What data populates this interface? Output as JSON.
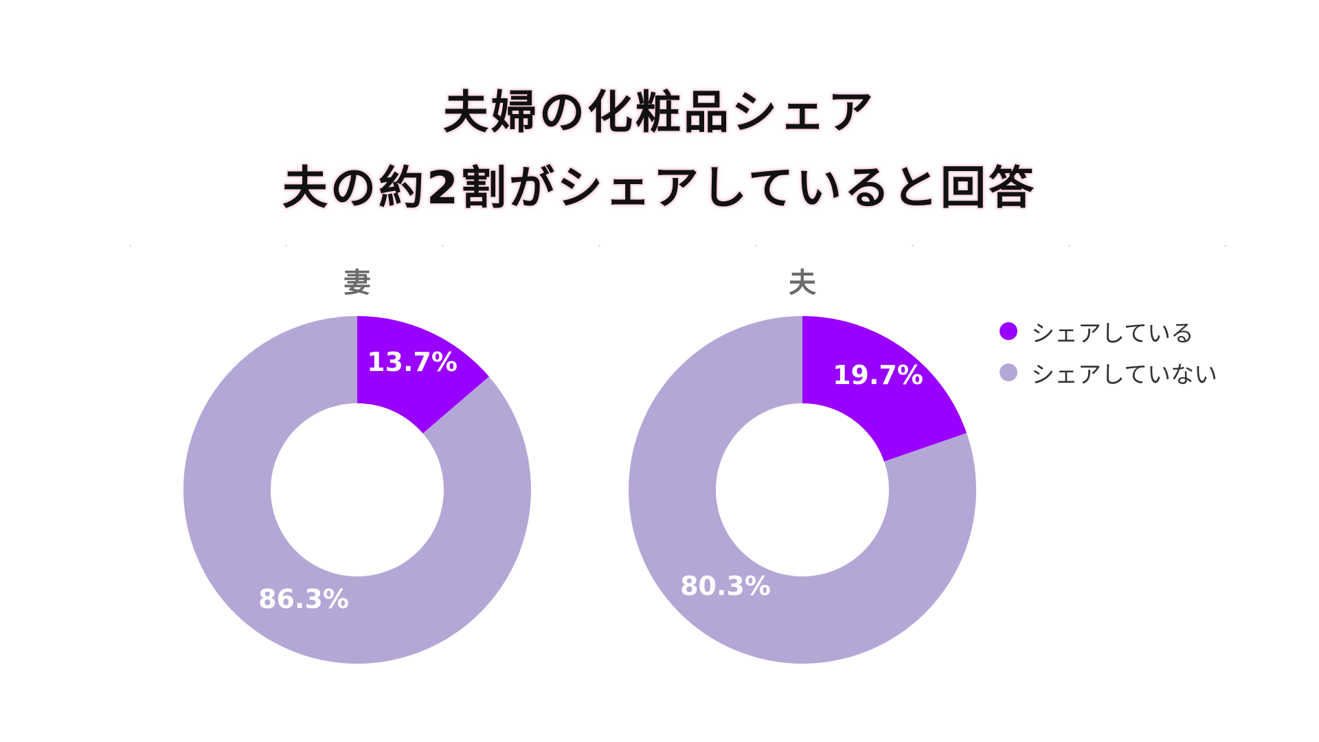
{
  "title": {
    "line1": "夫婦の化粧品シェア",
    "line2": "夫の約2割がシェアしていると回答"
  },
  "colors": {
    "share": "#9900ff",
    "no_share": "#b4a7d6",
    "title_text": "#111111",
    "chart_title": "#6b6b6b"
  },
  "legend": {
    "position": "right",
    "items": [
      {
        "label": "シェアしている",
        "color": "#9900ff"
      },
      {
        "label": "シェアしていない",
        "color": "#b4a7d6"
      }
    ]
  },
  "chart_data": [
    {
      "type": "pie",
      "donut": true,
      "title": "妻",
      "categories": [
        "シェアしている",
        "シェアしていない"
      ],
      "values": [
        13.7,
        86.3
      ],
      "labels": [
        "13.7%",
        "86.3%"
      ]
    },
    {
      "type": "pie",
      "donut": true,
      "title": "夫",
      "categories": [
        "シェアしている",
        "シェアしていない"
      ],
      "values": [
        19.7,
        80.3
      ],
      "labels": [
        "19.7%",
        "80.3%"
      ]
    }
  ]
}
